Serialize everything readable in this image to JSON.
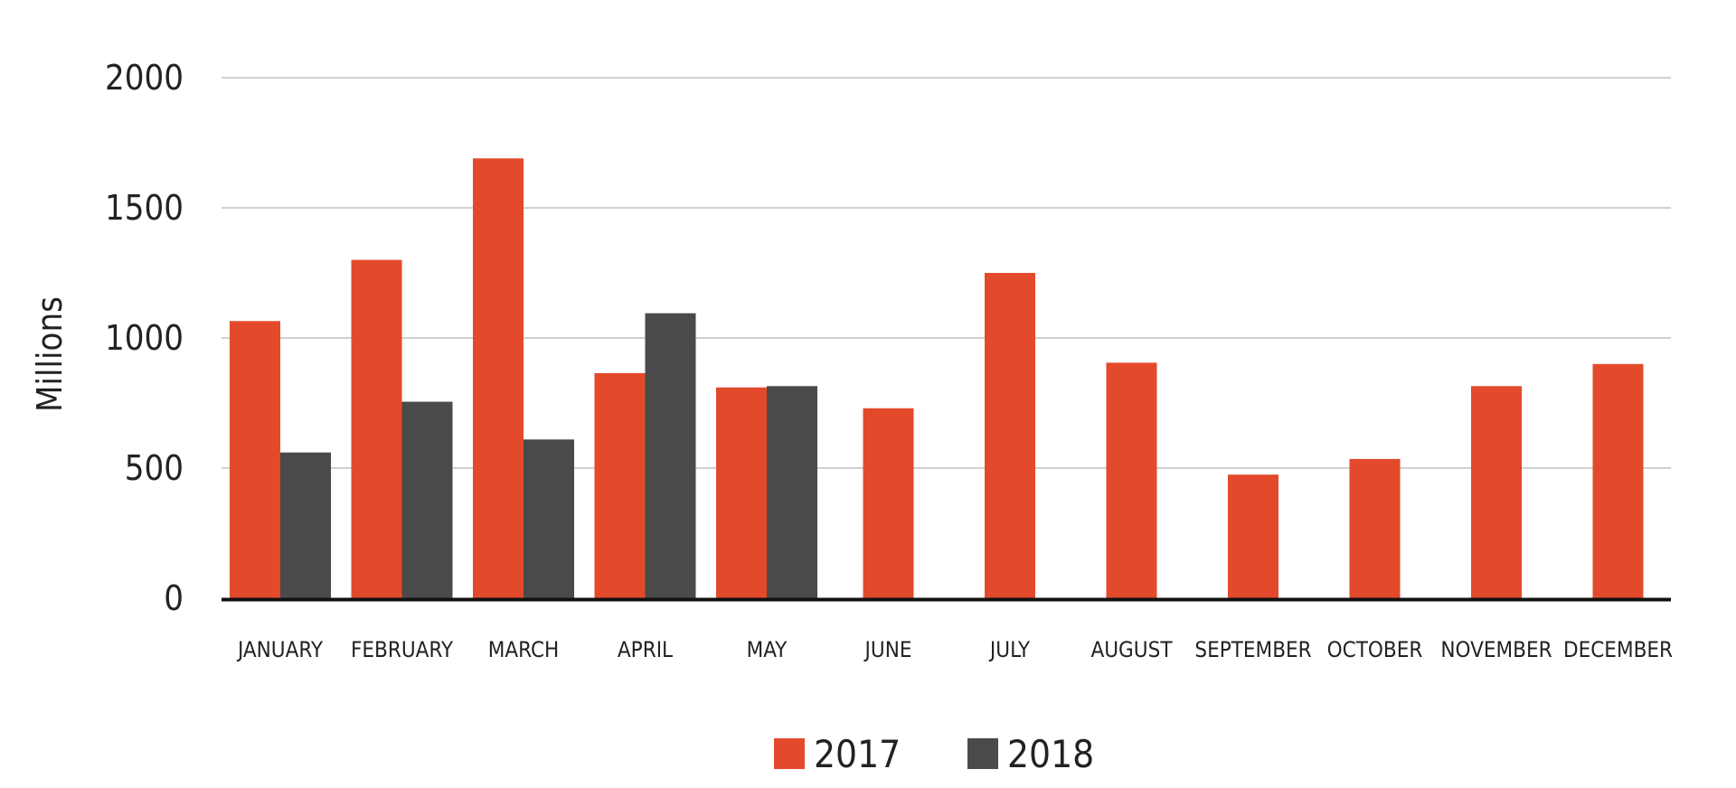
{
  "chart_data": {
    "type": "bar",
    "ylabel": "Millions",
    "ylim": [
      0,
      2000
    ],
    "yticks": [
      0,
      500,
      1000,
      1500,
      2000
    ],
    "ytick_labels": [
      "0",
      "500",
      "1000",
      "1500",
      "2000"
    ],
    "grid": true,
    "legend_position": "bottom",
    "categories": [
      "JANUARY",
      "FEBRUARY",
      "MARCH",
      "APRIL",
      "MAY",
      "JUNE",
      "JULY",
      "AUGUST",
      "SEPTEMBER",
      "OCTOBER",
      "NOVEMBER",
      "DECEMBER"
    ],
    "series": [
      {
        "name": "2017",
        "color": "#e34a2b",
        "values": [
          1065,
          1300,
          1690,
          865,
          810,
          730,
          1250,
          905,
          475,
          535,
          815,
          900
        ]
      },
      {
        "name": "2018",
        "color": "#4a4a4a",
        "values": [
          560,
          755,
          610,
          1095,
          815,
          null,
          null,
          null,
          null,
          null,
          null,
          null
        ]
      }
    ]
  }
}
